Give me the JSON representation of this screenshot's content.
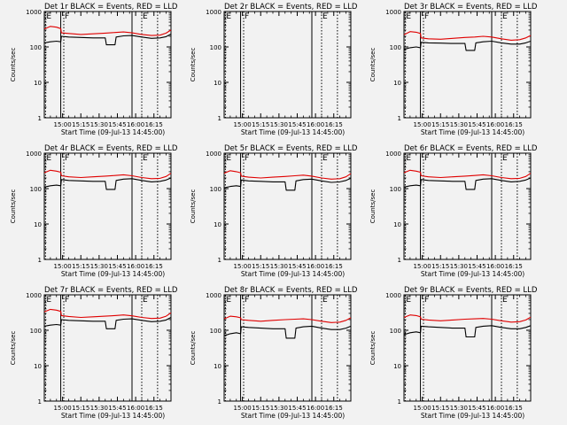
{
  "colors": {
    "background": "#f2f2f2",
    "events": "#000000",
    "lld": "#e00000",
    "frame": "#000000"
  },
  "common": {
    "ylabel": "Counts/sec",
    "xlabel": "Start Time (09-Jul-13 14:45:00)",
    "yticks": [
      {
        "v": 1,
        "label": "1"
      },
      {
        "v": 10,
        "label": "10"
      },
      {
        "v": 100,
        "label": "100"
      },
      {
        "v": 1000,
        "label": "1000"
      }
    ],
    "xticks": [
      {
        "t": 15,
        "label": "15:00"
      },
      {
        "t": 30,
        "label": "15:15"
      },
      {
        "t": 45,
        "label": "15:30"
      },
      {
        "t": 60,
        "label": "15:45"
      },
      {
        "t": 75,
        "label": "16:00"
      },
      {
        "t": 90,
        "label": "16:15"
      }
    ],
    "xrange_minutes_after_1445": [
      0,
      104
    ],
    "yrange": [
      1,
      1000
    ],
    "yscale": "log",
    "markers": [
      {
        "t": 1,
        "label": "E",
        "style": "dotted"
      },
      {
        "t": 13.5,
        "style": "solid"
      },
      {
        "t": 16,
        "label": "F",
        "style": "dotted"
      },
      {
        "t": 72,
        "style": "solid"
      },
      {
        "t": 80,
        "label": "E",
        "style": "dotted"
      },
      {
        "t": 93,
        "style": "dotted"
      }
    ]
  },
  "chart_data": [
    {
      "type": "line",
      "title": "Det 1r BLACK = Events, RED = LLD",
      "empty": false,
      "series": [
        {
          "name": "Events",
          "x": [
            0,
            5,
            10,
            13.5,
            14,
            20,
            30,
            40,
            50,
            51,
            58,
            59,
            65,
            72,
            80,
            88,
            95,
            100,
            104
          ],
          "values": [
            130,
            140,
            145,
            140,
            200,
            190,
            185,
            180,
            180,
            115,
            115,
            190,
            205,
            210,
            190,
            175,
            180,
            195,
            230
          ]
        },
        {
          "name": "LLD",
          "x": [
            0,
            5,
            10,
            13.5,
            14,
            20,
            30,
            40,
            50,
            58,
            65,
            72,
            80,
            88,
            95,
            100,
            104
          ],
          "values": [
            320,
            380,
            360,
            330,
            250,
            240,
            225,
            235,
            245,
            255,
            265,
            250,
            225,
            210,
            215,
            245,
            300
          ]
        }
      ]
    },
    {
      "type": "line",
      "title": "Det 2r BLACK = Events, RED = LLD",
      "empty": true,
      "series": []
    },
    {
      "type": "line",
      "title": "Det 3r BLACK = Events, RED = LLD",
      "empty": false,
      "series": [
        {
          "name": "Events",
          "x": [
            0,
            5,
            10,
            13.5,
            14,
            20,
            30,
            40,
            50,
            51,
            58,
            59,
            65,
            72,
            80,
            88,
            95,
            100,
            104
          ],
          "values": [
            85,
            95,
            100,
            95,
            135,
            130,
            128,
            125,
            125,
            80,
            80,
            130,
            140,
            145,
            130,
            120,
            120,
            130,
            145
          ]
        },
        {
          "name": "LLD",
          "x": [
            0,
            5,
            10,
            13.5,
            14,
            20,
            30,
            40,
            50,
            58,
            65,
            72,
            80,
            88,
            95,
            100,
            104
          ],
          "values": [
            220,
            270,
            260,
            240,
            180,
            170,
            165,
            175,
            185,
            190,
            200,
            190,
            170,
            155,
            160,
            180,
            210
          ]
        }
      ]
    },
    {
      "type": "line",
      "title": "Det 4r BLACK = Events, RED = LLD",
      "empty": false,
      "series": [
        {
          "name": "Events",
          "x": [
            0,
            5,
            10,
            13.5,
            14,
            20,
            30,
            40,
            50,
            51,
            58,
            59,
            65,
            72,
            80,
            88,
            95,
            100,
            104
          ],
          "values": [
            110,
            120,
            125,
            120,
            180,
            170,
            165,
            160,
            160,
            95,
            95,
            170,
            185,
            190,
            170,
            155,
            160,
            175,
            200
          ]
        },
        {
          "name": "LLD",
          "x": [
            0,
            5,
            10,
            13.5,
            14,
            20,
            30,
            40,
            50,
            58,
            65,
            72,
            80,
            88,
            95,
            100,
            104
          ],
          "values": [
            280,
            330,
            310,
            290,
            230,
            215,
            205,
            215,
            225,
            235,
            245,
            230,
            205,
            190,
            195,
            220,
            270
          ]
        }
      ]
    },
    {
      "type": "line",
      "title": "Det 5r BLACK = Events, RED = LLD",
      "empty": false,
      "series": [
        {
          "name": "Events",
          "x": [
            0,
            5,
            10,
            13.5,
            14,
            20,
            30,
            40,
            50,
            51,
            58,
            59,
            65,
            72,
            80,
            88,
            95,
            100,
            104
          ],
          "values": [
            105,
            115,
            120,
            115,
            175,
            165,
            160,
            155,
            155,
            90,
            90,
            165,
            180,
            185,
            165,
            150,
            155,
            170,
            195
          ]
        },
        {
          "name": "LLD",
          "x": [
            0,
            5,
            10,
            13.5,
            14,
            20,
            30,
            40,
            50,
            58,
            65,
            72,
            80,
            88,
            95,
            100,
            104
          ],
          "values": [
            270,
            320,
            300,
            280,
            225,
            210,
            200,
            210,
            220,
            230,
            240,
            225,
            200,
            185,
            190,
            215,
            265
          ]
        }
      ]
    },
    {
      "type": "line",
      "title": "Det 6r BLACK = Events, RED = LLD",
      "empty": false,
      "series": [
        {
          "name": "Events",
          "x": [
            0,
            5,
            10,
            13.5,
            14,
            20,
            30,
            40,
            50,
            51,
            58,
            59,
            65,
            72,
            80,
            88,
            95,
            100,
            104
          ],
          "values": [
            110,
            120,
            125,
            120,
            180,
            170,
            165,
            160,
            160,
            95,
            95,
            170,
            185,
            190,
            170,
            155,
            160,
            175,
            200
          ]
        },
        {
          "name": "LLD",
          "x": [
            0,
            5,
            10,
            13.5,
            14,
            20,
            30,
            40,
            50,
            58,
            65,
            72,
            80,
            88,
            95,
            100,
            104
          ],
          "values": [
            280,
            330,
            310,
            290,
            230,
            215,
            205,
            215,
            225,
            235,
            245,
            230,
            205,
            190,
            195,
            220,
            270
          ]
        }
      ]
    },
    {
      "type": "line",
      "title": "Det 7r BLACK = Events, RED = LLD",
      "empty": false,
      "series": [
        {
          "name": "Events",
          "x": [
            0,
            5,
            10,
            13.5,
            14,
            20,
            30,
            40,
            50,
            51,
            58,
            59,
            65,
            72,
            80,
            88,
            95,
            100,
            104
          ],
          "values": [
            130,
            140,
            145,
            140,
            200,
            190,
            185,
            180,
            180,
            110,
            110,
            190,
            205,
            210,
            190,
            175,
            180,
            195,
            230
          ]
        },
        {
          "name": "LLD",
          "x": [
            0,
            5,
            10,
            13.5,
            14,
            20,
            30,
            40,
            50,
            58,
            65,
            72,
            80,
            88,
            95,
            100,
            104
          ],
          "values": [
            330,
            390,
            370,
            340,
            260,
            245,
            230,
            240,
            250,
            260,
            270,
            255,
            230,
            215,
            220,
            250,
            310
          ]
        }
      ]
    },
    {
      "type": "line",
      "title": "Det 8r BLACK = Events, RED = LLD",
      "empty": false,
      "series": [
        {
          "name": "Events",
          "x": [
            0,
            5,
            10,
            13.5,
            14,
            20,
            30,
            40,
            50,
            51,
            58,
            59,
            65,
            72,
            80,
            88,
            95,
            100,
            104
          ],
          "values": [
            70,
            80,
            85,
            80,
            125,
            120,
            115,
            110,
            110,
            60,
            60,
            115,
            125,
            130,
            115,
            105,
            105,
            115,
            130
          ]
        },
        {
          "name": "LLD",
          "x": [
            0,
            5,
            10,
            13.5,
            14,
            20,
            30,
            40,
            50,
            58,
            65,
            72,
            80,
            88,
            95,
            100,
            104
          ],
          "values": [
            210,
            250,
            240,
            225,
            200,
            190,
            180,
            190,
            200,
            205,
            210,
            200,
            180,
            165,
            170,
            190,
            225
          ]
        }
      ]
    },
    {
      "type": "line",
      "title": "Det 9r BLACK = Events, RED = LLD",
      "empty": false,
      "series": [
        {
          "name": "Events",
          "x": [
            0,
            5,
            10,
            13.5,
            14,
            20,
            30,
            40,
            50,
            51,
            58,
            59,
            65,
            72,
            80,
            88,
            95,
            100,
            104
          ],
          "values": [
            75,
            85,
            90,
            85,
            130,
            125,
            120,
            115,
            115,
            65,
            65,
            120,
            130,
            135,
            120,
            110,
            110,
            120,
            135
          ]
        },
        {
          "name": "LLD",
          "x": [
            0,
            5,
            10,
            13.5,
            14,
            20,
            30,
            40,
            50,
            58,
            65,
            72,
            80,
            88,
            95,
            100,
            104
          ],
          "values": [
            230,
            270,
            260,
            240,
            205,
            195,
            185,
            195,
            205,
            210,
            215,
            205,
            185,
            170,
            175,
            195,
            235
          ]
        }
      ]
    }
  ]
}
